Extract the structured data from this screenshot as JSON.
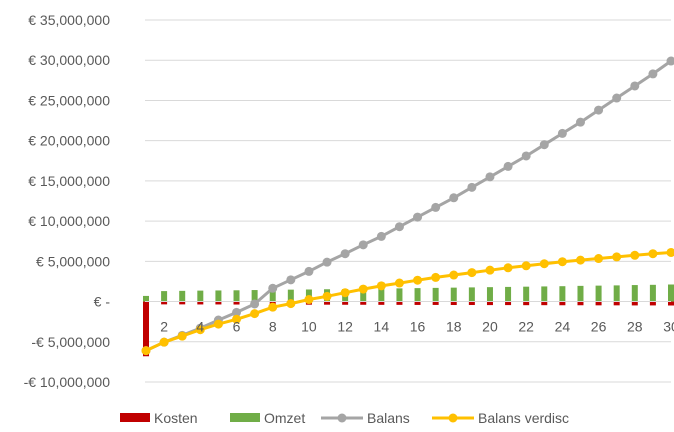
{
  "chart_data": {
    "type": "bar+line",
    "y_tick_labels": [
      "€ 35,000,000",
      "€ 30,000,000",
      "€ 25,000,000",
      "€ 20,000,000",
      "€ 15,000,000",
      "€ 10,000,000",
      "€ 5,000,000",
      "€ -",
      "-€ 5,000,000",
      "-€ 10,000,000"
    ],
    "y_tick_values": [
      35000000,
      30000000,
      25000000,
      20000000,
      15000000,
      10000000,
      5000000,
      0,
      -5000000,
      -10000000
    ],
    "ylim": [
      -10000000,
      35000000
    ],
    "x": [
      1,
      2,
      3,
      4,
      5,
      6,
      7,
      8,
      9,
      10,
      11,
      12,
      13,
      14,
      15,
      16,
      17,
      18,
      19,
      20,
      21,
      22,
      23,
      24,
      25,
      26,
      27,
      28,
      29,
      30
    ],
    "x_tick_labels": [
      "2",
      "4",
      "6",
      "8",
      "10",
      "12",
      "14",
      "16",
      "18",
      "20",
      "22",
      "24",
      "26",
      "28",
      "30"
    ],
    "x_tick_values": [
      2,
      4,
      6,
      8,
      10,
      12,
      14,
      16,
      18,
      20,
      22,
      24,
      26,
      28,
      30
    ],
    "grid": true,
    "legend_position": "bottom",
    "series": [
      {
        "name": "Kosten",
        "kind": "bar",
        "color": "#c00000",
        "values": [
          -6800000,
          -350000,
          -350000,
          -360000,
          -360000,
          -370000,
          -370000,
          -380000,
          -380000,
          -390000,
          -390000,
          -400000,
          -400000,
          -410000,
          -410000,
          -420000,
          -420000,
          -430000,
          -430000,
          -440000,
          -440000,
          -450000,
          -450000,
          -460000,
          -460000,
          -470000,
          -470000,
          -480000,
          -480000,
          -490000
        ]
      },
      {
        "name": "Omzet",
        "kind": "bar",
        "color": "#70ad47",
        "values": [
          700000,
          1300000,
          1330000,
          1360000,
          1380000,
          1400000,
          1430000,
          1450000,
          1480000,
          1500000,
          1530000,
          1560000,
          1580000,
          1610000,
          1640000,
          1670000,
          1700000,
          1730000,
          1760000,
          1790000,
          1820000,
          1850000,
          1880000,
          1910000,
          1950000,
          1980000,
          2010000,
          2050000,
          2080000,
          2120000
        ]
      },
      {
        "name": "Balans",
        "kind": "line",
        "color": "#a5a5a5",
        "values": [
          -6100000,
          -5050000,
          -4200000,
          -3300000,
          -2300000,
          -1350000,
          -300000,
          1650000,
          2700000,
          3750000,
          4900000,
          5950000,
          7050000,
          8100000,
          9300000,
          10500000,
          11700000,
          12900000,
          14200000,
          15500000,
          16800000,
          18100000,
          19500000,
          20900000,
          22300000,
          23800000,
          25300000,
          26800000,
          28300000,
          29900000
        ]
      },
      {
        "name": "Balans verdisc",
        "kind": "line",
        "color": "#ffc000",
        "values": [
          -6100000,
          -5050000,
          -4300000,
          -3500000,
          -2800000,
          -2200000,
          -1500000,
          -700000,
          -250000,
          250000,
          650000,
          1100000,
          1550000,
          1950000,
          2300000,
          2650000,
          3000000,
          3300000,
          3600000,
          3900000,
          4200000,
          4450000,
          4700000,
          4950000,
          5150000,
          5350000,
          5550000,
          5750000,
          5950000,
          6100000
        ]
      }
    ]
  }
}
